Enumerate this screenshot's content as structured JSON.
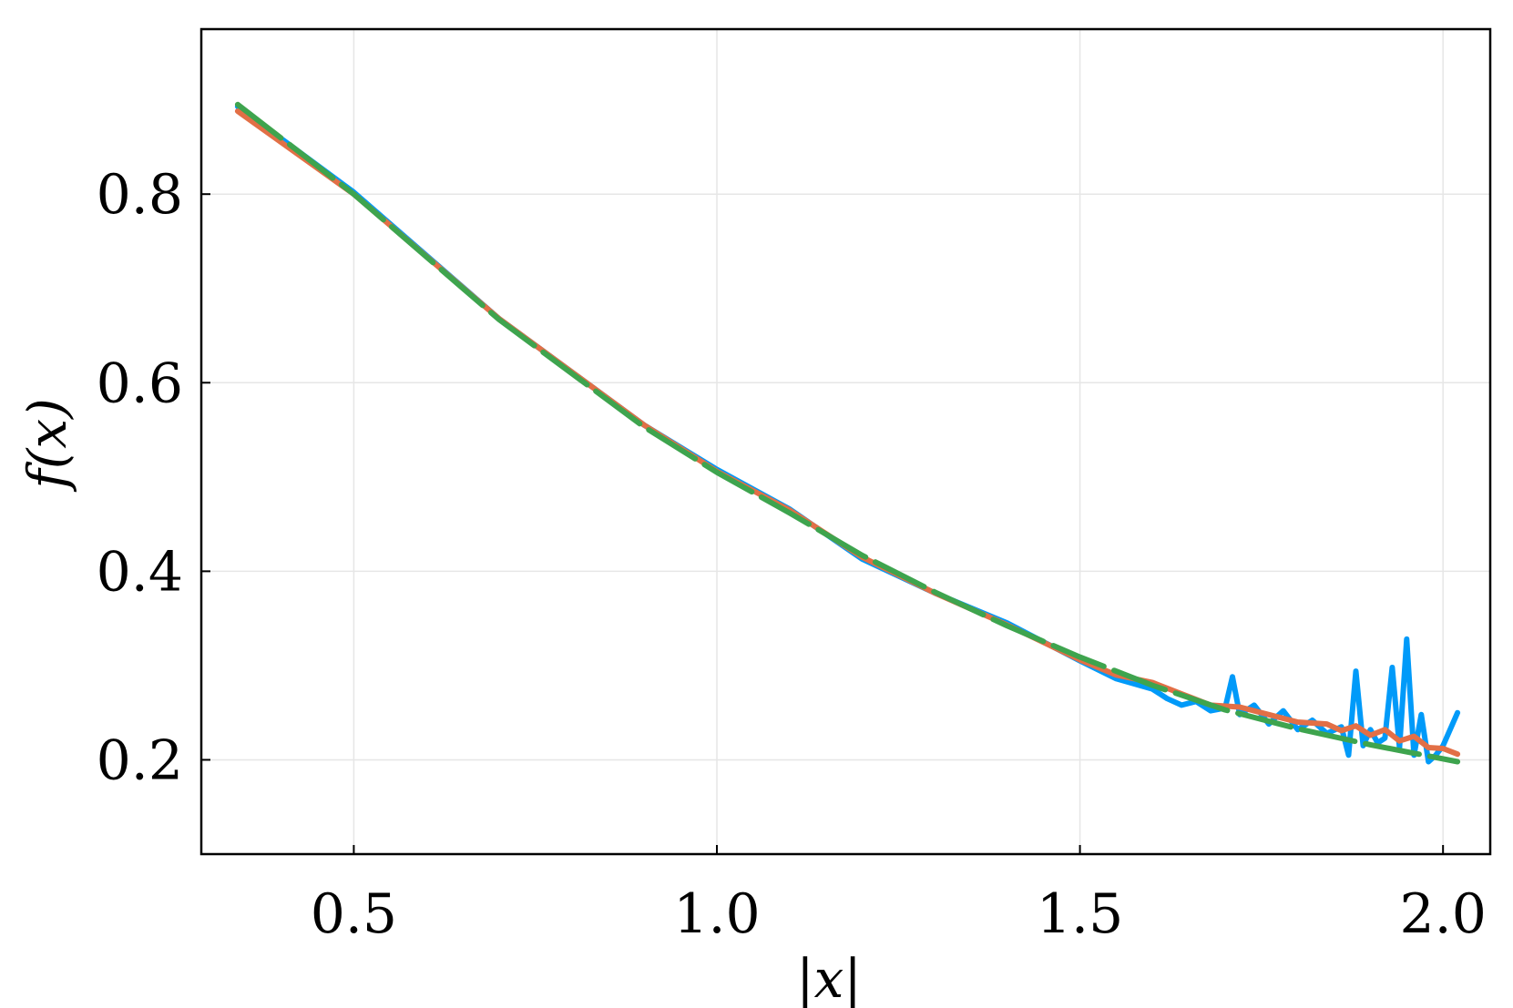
{
  "chart_data": {
    "type": "line",
    "title": "",
    "xlabel": "|x|",
    "ylabel": "f(x)",
    "xlim": [
      0.29,
      2.065
    ],
    "ylim": [
      0.1,
      0.975
    ],
    "xticks": [
      0.5,
      1.0,
      1.5,
      2.0
    ],
    "xtick_labels": [
      "0.5",
      "1.0",
      "1.5",
      "2.0"
    ],
    "yticks": [
      0.2,
      0.4,
      0.6,
      0.8
    ],
    "ytick_labels": [
      "0.2",
      "0.4",
      "0.6",
      "0.8"
    ],
    "grid": true,
    "legend": "none",
    "series": [
      {
        "color": "#009af9",
        "style": "solid",
        "x": [
          0.34,
          0.5,
          0.7,
          0.9,
          1.0,
          1.1,
          1.2,
          1.3,
          1.4,
          1.5,
          1.55,
          1.6,
          1.62,
          1.64,
          1.66,
          1.68,
          1.7,
          1.71,
          1.72,
          1.74,
          1.76,
          1.78,
          1.8,
          1.82,
          1.84,
          1.86,
          1.87,
          1.88,
          1.89,
          1.9,
          1.91,
          1.92,
          1.93,
          1.94,
          1.95,
          1.96,
          1.97,
          1.98,
          1.99,
          2.0,
          2.02
        ],
        "y": [
          0.893,
          0.802,
          0.668,
          0.555,
          0.508,
          0.466,
          0.413,
          0.377,
          0.345,
          0.305,
          0.286,
          0.275,
          0.265,
          0.258,
          0.262,
          0.252,
          0.255,
          0.288,
          0.248,
          0.258,
          0.238,
          0.252,
          0.232,
          0.242,
          0.228,
          0.235,
          0.205,
          0.294,
          0.215,
          0.232,
          0.218,
          0.223,
          0.298,
          0.213,
          0.328,
          0.205,
          0.248,
          0.198,
          0.205,
          0.215,
          0.25
        ]
      },
      {
        "color": "#e26f46",
        "style": "solid",
        "x": [
          0.34,
          0.5,
          0.7,
          0.9,
          1.0,
          1.1,
          1.2,
          1.3,
          1.4,
          1.5,
          1.55,
          1.6,
          1.64,
          1.68,
          1.72,
          1.76,
          1.8,
          1.84,
          1.86,
          1.88,
          1.9,
          1.92,
          1.94,
          1.96,
          1.98,
          2.0,
          2.02
        ],
        "y": [
          0.888,
          0.8,
          0.668,
          0.555,
          0.506,
          0.465,
          0.415,
          0.377,
          0.343,
          0.306,
          0.29,
          0.282,
          0.27,
          0.258,
          0.256,
          0.248,
          0.24,
          0.238,
          0.231,
          0.236,
          0.226,
          0.232,
          0.22,
          0.225,
          0.213,
          0.212,
          0.206
        ]
      },
      {
        "color": "#3ea44e",
        "style": "dashed",
        "x": [
          0.34,
          0.5,
          0.7,
          0.9,
          1.0,
          1.1,
          1.2,
          1.3,
          1.4,
          1.5,
          1.6,
          1.7,
          1.8,
          1.9,
          2.02
        ],
        "y": [
          0.895,
          0.8,
          0.667,
          0.553,
          0.505,
          0.462,
          0.417,
          0.378,
          0.342,
          0.309,
          0.279,
          0.253,
          0.233,
          0.216,
          0.198
        ]
      }
    ]
  }
}
